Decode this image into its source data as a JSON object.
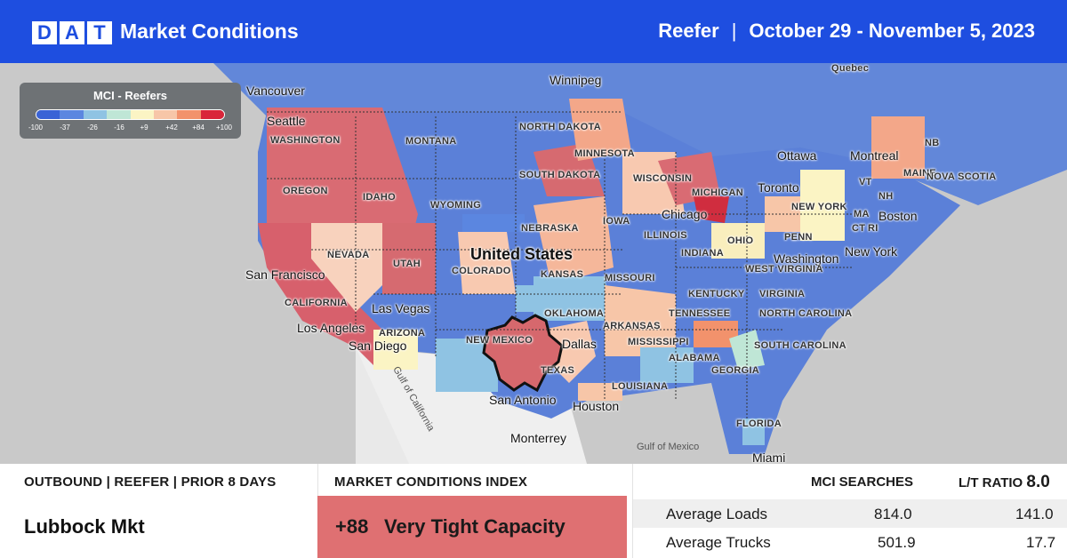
{
  "header": {
    "logo_letters": [
      "D",
      "A",
      "T"
    ],
    "title": "Market Conditions",
    "equipment": "Reefer",
    "separator": "|",
    "date_range": "October 29 - November 5, 2023"
  },
  "legend": {
    "title": "MCI - Reefers",
    "ticks": [
      "-100",
      "-37",
      "-26",
      "-16",
      "+9",
      "+42",
      "+84",
      "+100"
    ],
    "colors": [
      "#3a63d6",
      "#5b86e0",
      "#8fc3e3",
      "#bfe6d6",
      "#fbf4c4",
      "#f7c6a8",
      "#f2926c",
      "#d9253a"
    ]
  },
  "map": {
    "country_label": "United States",
    "cities": [
      "Vancouver",
      "Seattle",
      "Winnipeg",
      "Ottawa",
      "Montreal",
      "Quebec",
      "Toronto",
      "Boston",
      "New York",
      "Chicago",
      "Washington",
      "San Francisco",
      "Las Vegas",
      "Los Angeles",
      "San Diego",
      "Dallas",
      "San Antonio",
      "Houston",
      "Monterrey",
      "Miami"
    ],
    "states": [
      "WASHINGTON",
      "OREGON",
      "IDAHO",
      "MONTANA",
      "NORTH DAKOTA",
      "SOUTH DAKOTA",
      "MINNESOTA",
      "WISCONSIN",
      "MICHIGAN",
      "WYOMING",
      "NEBRASKA",
      "IOWA",
      "ILLINOIS",
      "INDIANA",
      "OHIO",
      "PENN",
      "NEW YORK",
      "MAINE",
      "VT",
      "NH",
      "MA",
      "CT",
      "RI",
      "NB",
      "NOVA SCOTIA",
      "NEVADA",
      "UTAH",
      "COLORADO",
      "KANSAS",
      "MISSOURI",
      "KENTUCKY",
      "WEST VIRGINIA",
      "VIRGINIA",
      "TENNESSEE",
      "NORTH CAROLINA",
      "SOUTH CAROLINA",
      "CALIFORNIA",
      "ARIZONA",
      "NEW MEXICO",
      "OKLAHOMA",
      "ARKANSAS",
      "MISSISSIPPI",
      "ALABAMA",
      "GEORGIA",
      "TEXAS",
      "LOUISIANA",
      "FLORIDA"
    ],
    "water": [
      "Gulf of California",
      "Gulf of Mexico"
    ],
    "highlighted_market": "Lubbock Mkt"
  },
  "panel": {
    "outbound_header": "OUTBOUND | REEFER | PRIOR 8 DAYS",
    "market_name": "Lubbock Mkt",
    "mci_header": "MARKET CONDITIONS INDEX",
    "mci_value": "+88",
    "mci_label": "Very Tight Capacity",
    "mci_color": "#df7072",
    "searches_header": "MCI SEARCHES",
    "lt_ratio_label": "L/T RATIO",
    "lt_ratio_value": "8.0",
    "rows": [
      {
        "label": "Average Loads",
        "searches": "814.0",
        "lt": "141.0"
      },
      {
        "label": "Average Trucks",
        "searches": "501.9",
        "lt": "17.7"
      }
    ]
  }
}
